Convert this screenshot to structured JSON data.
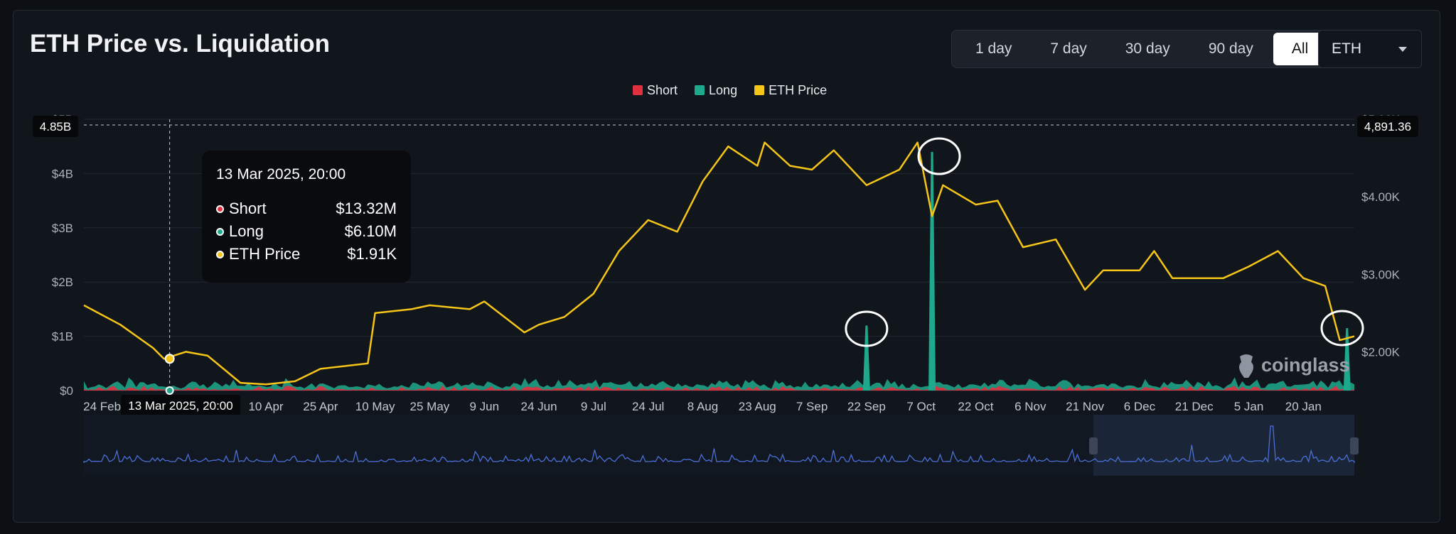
{
  "header": {
    "title": "ETH Price vs. Liquidation",
    "ranges": [
      "1 day",
      "7 day",
      "30 day",
      "90 day",
      "All"
    ],
    "active_range": "All",
    "coin": "ETH"
  },
  "tooltip": {
    "time": "13 Mar 2025, 20:00",
    "rows": [
      {
        "label": "Short",
        "value": "$13.32M"
      },
      {
        "label": "Long",
        "value": "$6.10M"
      },
      {
        "label": "ETH Price",
        "value": "$1.91K"
      }
    ]
  },
  "crosshair": {
    "y_left_label": "4.85B",
    "y_right_label": "4,891.36",
    "x_label": "13 Mar 2025, 20:00"
  },
  "logo": "coinglass",
  "colors": {
    "short": "#e0303f",
    "long": "#1fa98c",
    "price": "#f5c518",
    "navigator": "#4a6fd6"
  },
  "chart_data": {
    "type": "area",
    "legend": [
      "Short",
      "Long",
      "ETH Price"
    ],
    "legend_position": "top-center",
    "x_ticks": [
      "24 Feb",
      "10 Mar",
      "25 Mar",
      "10 Apr",
      "25 Apr",
      "10 May",
      "25 May",
      "9 Jun",
      "24 Jun",
      "9 Jul",
      "24 Jul",
      "8 Aug",
      "23 Aug",
      "7 Sep",
      "22 Sep",
      "7 Oct",
      "22 Oct",
      "6 Nov",
      "21 Nov",
      "6 Dec",
      "21 Dec",
      "5 Jan",
      "20 Jan"
    ],
    "y_left_ticks": [
      "$0",
      "$1B",
      "$2B",
      "$3B",
      "$4B",
      "$5B"
    ],
    "y_left_range": [
      0,
      5
    ],
    "y_right_ticks": [
      "$2.00K",
      "$3.00K",
      "$4.00K",
      "$5.00K"
    ],
    "y_right_range": [
      1500,
      5000
    ],
    "grid": true,
    "eth_price": {
      "name": "ETH Price",
      "points": [
        [
          "24 Feb",
          2600
        ],
        [
          "1 Mar",
          2350
        ],
        [
          "10 Mar",
          2050
        ],
        [
          "13 Mar",
          1910
        ],
        [
          "19 Mar",
          2000
        ],
        [
          "25 Mar",
          1950
        ],
        [
          "3 Apr",
          1600
        ],
        [
          "10 Apr",
          1580
        ],
        [
          "18 Apr",
          1620
        ],
        [
          "25 Apr",
          1780
        ],
        [
          "8 May",
          1850
        ],
        [
          "10 May",
          2500
        ],
        [
          "20 May",
          2550
        ],
        [
          "25 May",
          2600
        ],
        [
          "5 Jun",
          2550
        ],
        [
          "9 Jun",
          2650
        ],
        [
          "20 Jun",
          2250
        ],
        [
          "24 Jun",
          2350
        ],
        [
          "1 Jul",
          2450
        ],
        [
          "9 Jul",
          2750
        ],
        [
          "16 Jul",
          3300
        ],
        [
          "24 Jul",
          3700
        ],
        [
          "1 Aug",
          3550
        ],
        [
          "8 Aug",
          4200
        ],
        [
          "15 Aug",
          4650
        ],
        [
          "23 Aug",
          4400
        ],
        [
          "25 Aug",
          4700
        ],
        [
          "1 Sep",
          4400
        ],
        [
          "7 Sep",
          4350
        ],
        [
          "13 Sep",
          4600
        ],
        [
          "22 Sep",
          4150
        ],
        [
          "1 Oct",
          4350
        ],
        [
          "6 Oct",
          4700
        ],
        [
          "10 Oct",
          3750
        ],
        [
          "13 Oct",
          4150
        ],
        [
          "22 Oct",
          3900
        ],
        [
          "28 Oct",
          3950
        ],
        [
          "4 Nov",
          3350
        ],
        [
          "13 Nov",
          3450
        ],
        [
          "21 Nov",
          2800
        ],
        [
          "26 Nov",
          3050
        ],
        [
          "6 Dec",
          3050
        ],
        [
          "10 Dec",
          3300
        ],
        [
          "15 Dec",
          2950
        ],
        [
          "21 Dec",
          2950
        ],
        [
          "29 Dec",
          2950
        ],
        [
          "5 Jan",
          3100
        ],
        [
          "13 Jan",
          3300
        ],
        [
          "20 Jan",
          2950
        ],
        [
          "26 Jan",
          2850
        ],
        [
          "30 Jan",
          2150
        ],
        [
          "1 Feb",
          2200
        ]
      ]
    },
    "liquidation_notable_long": [
      {
        "date": "22 Sep",
        "value": 1.2
      },
      {
        "date": "10 Oct",
        "value": 4.4
      },
      {
        "date": "1 Feb",
        "value": 1.15
      }
    ],
    "highlighted_spikes": [
      "22 Sep",
      "7 Oct",
      "1 Feb"
    ]
  }
}
